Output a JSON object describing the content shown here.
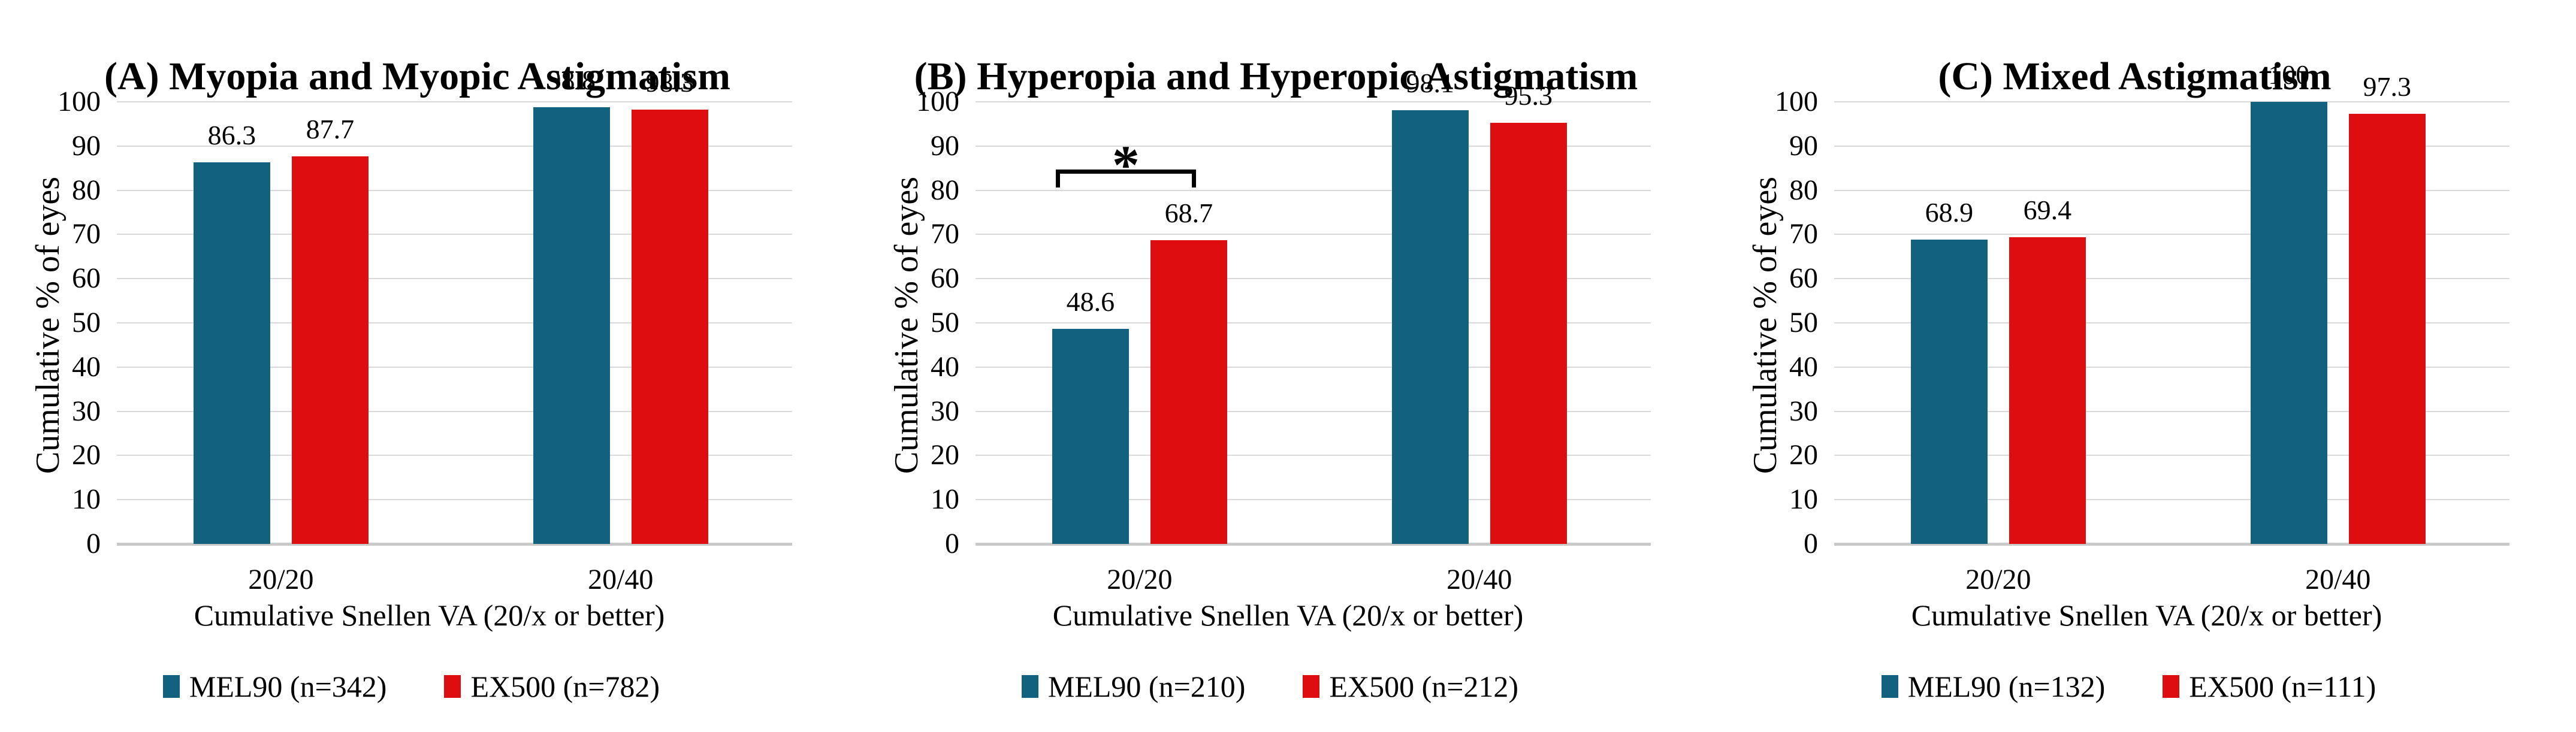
{
  "figure": {
    "background": "#ffffff",
    "ylabel": "Cumulative % of eyes",
    "xlabel": "Cumulative Snellen VA (20/x or better)",
    "y_ticks": [
      0,
      10,
      20,
      30,
      40,
      50,
      60,
      70,
      80,
      90,
      100
    ],
    "ylim": [
      0,
      100
    ],
    "categories": [
      "20/20",
      "20/40"
    ],
    "colors": {
      "mel90": "#11617f",
      "ex500": "#de0d10",
      "gridline": "#d9d9d9",
      "baseline": "#c9c9c9",
      "text": "#000000"
    }
  },
  "chart_data": [
    {
      "type": "bar",
      "panel_label": "(A)",
      "title": "Myopia and Myopic Astigmatism",
      "categories": [
        "20/20",
        "20/40"
      ],
      "xlabel": "Cumulative Snellen VA (20/x or better)",
      "ylabel": "Cumulative % of eyes",
      "ylim": [
        0,
        100
      ],
      "grid": true,
      "legend_position": "bottom",
      "series": [
        {
          "name": "MEL90 (n=342)",
          "color_key": "mel90",
          "values": [
            86.3,
            98.8
          ],
          "labels": [
            "86.3",
            "98.8"
          ]
        },
        {
          "name": "EX500 (n=782)",
          "color_key": "ex500",
          "values": [
            87.7,
            98.3
          ],
          "labels": [
            "87.7",
            "98.3"
          ]
        }
      ],
      "annotation": null
    },
    {
      "type": "bar",
      "panel_label": "(B)",
      "title": "Hyperopia and Hyperopic Astigmatism",
      "categories": [
        "20/20",
        "20/40"
      ],
      "xlabel": "Cumulative Snellen VA (20/x or better)",
      "ylabel": "Cumulative % of eyes",
      "ylim": [
        0,
        100
      ],
      "grid": true,
      "legend_position": "bottom",
      "series": [
        {
          "name": "MEL90 (n=210)",
          "color_key": "mel90",
          "values": [
            48.6,
            98.1
          ],
          "labels": [
            "48.6",
            "98.1"
          ]
        },
        {
          "name": "EX500 (n=212)",
          "color_key": "ex500",
          "values": [
            68.7,
            95.3
          ],
          "labels": [
            "68.7",
            "95.3"
          ]
        }
      ],
      "annotation": {
        "symbol": "*",
        "category_index": 0,
        "line_value": 84.7,
        "meaning": "significant difference between MEL90 and EX500 at 20/20"
      }
    },
    {
      "type": "bar",
      "panel_label": "(C)",
      "title": "Mixed Astigmatism",
      "categories": [
        "20/20",
        "20/40"
      ],
      "xlabel": "Cumulative Snellen VA (20/x or better)",
      "ylabel": "Cumulative % of eyes",
      "ylim": [
        0,
        100
      ],
      "grid": true,
      "legend_position": "bottom",
      "series": [
        {
          "name": "MEL90 (n=132)",
          "color_key": "mel90",
          "values": [
            68.9,
            100
          ],
          "labels": [
            "68.9",
            "100"
          ]
        },
        {
          "name": "EX500 (n=111)",
          "color_key": "ex500",
          "values": [
            69.4,
            97.3
          ],
          "labels": [
            "69.4",
            "97.3"
          ]
        }
      ],
      "annotation": null
    }
  ]
}
